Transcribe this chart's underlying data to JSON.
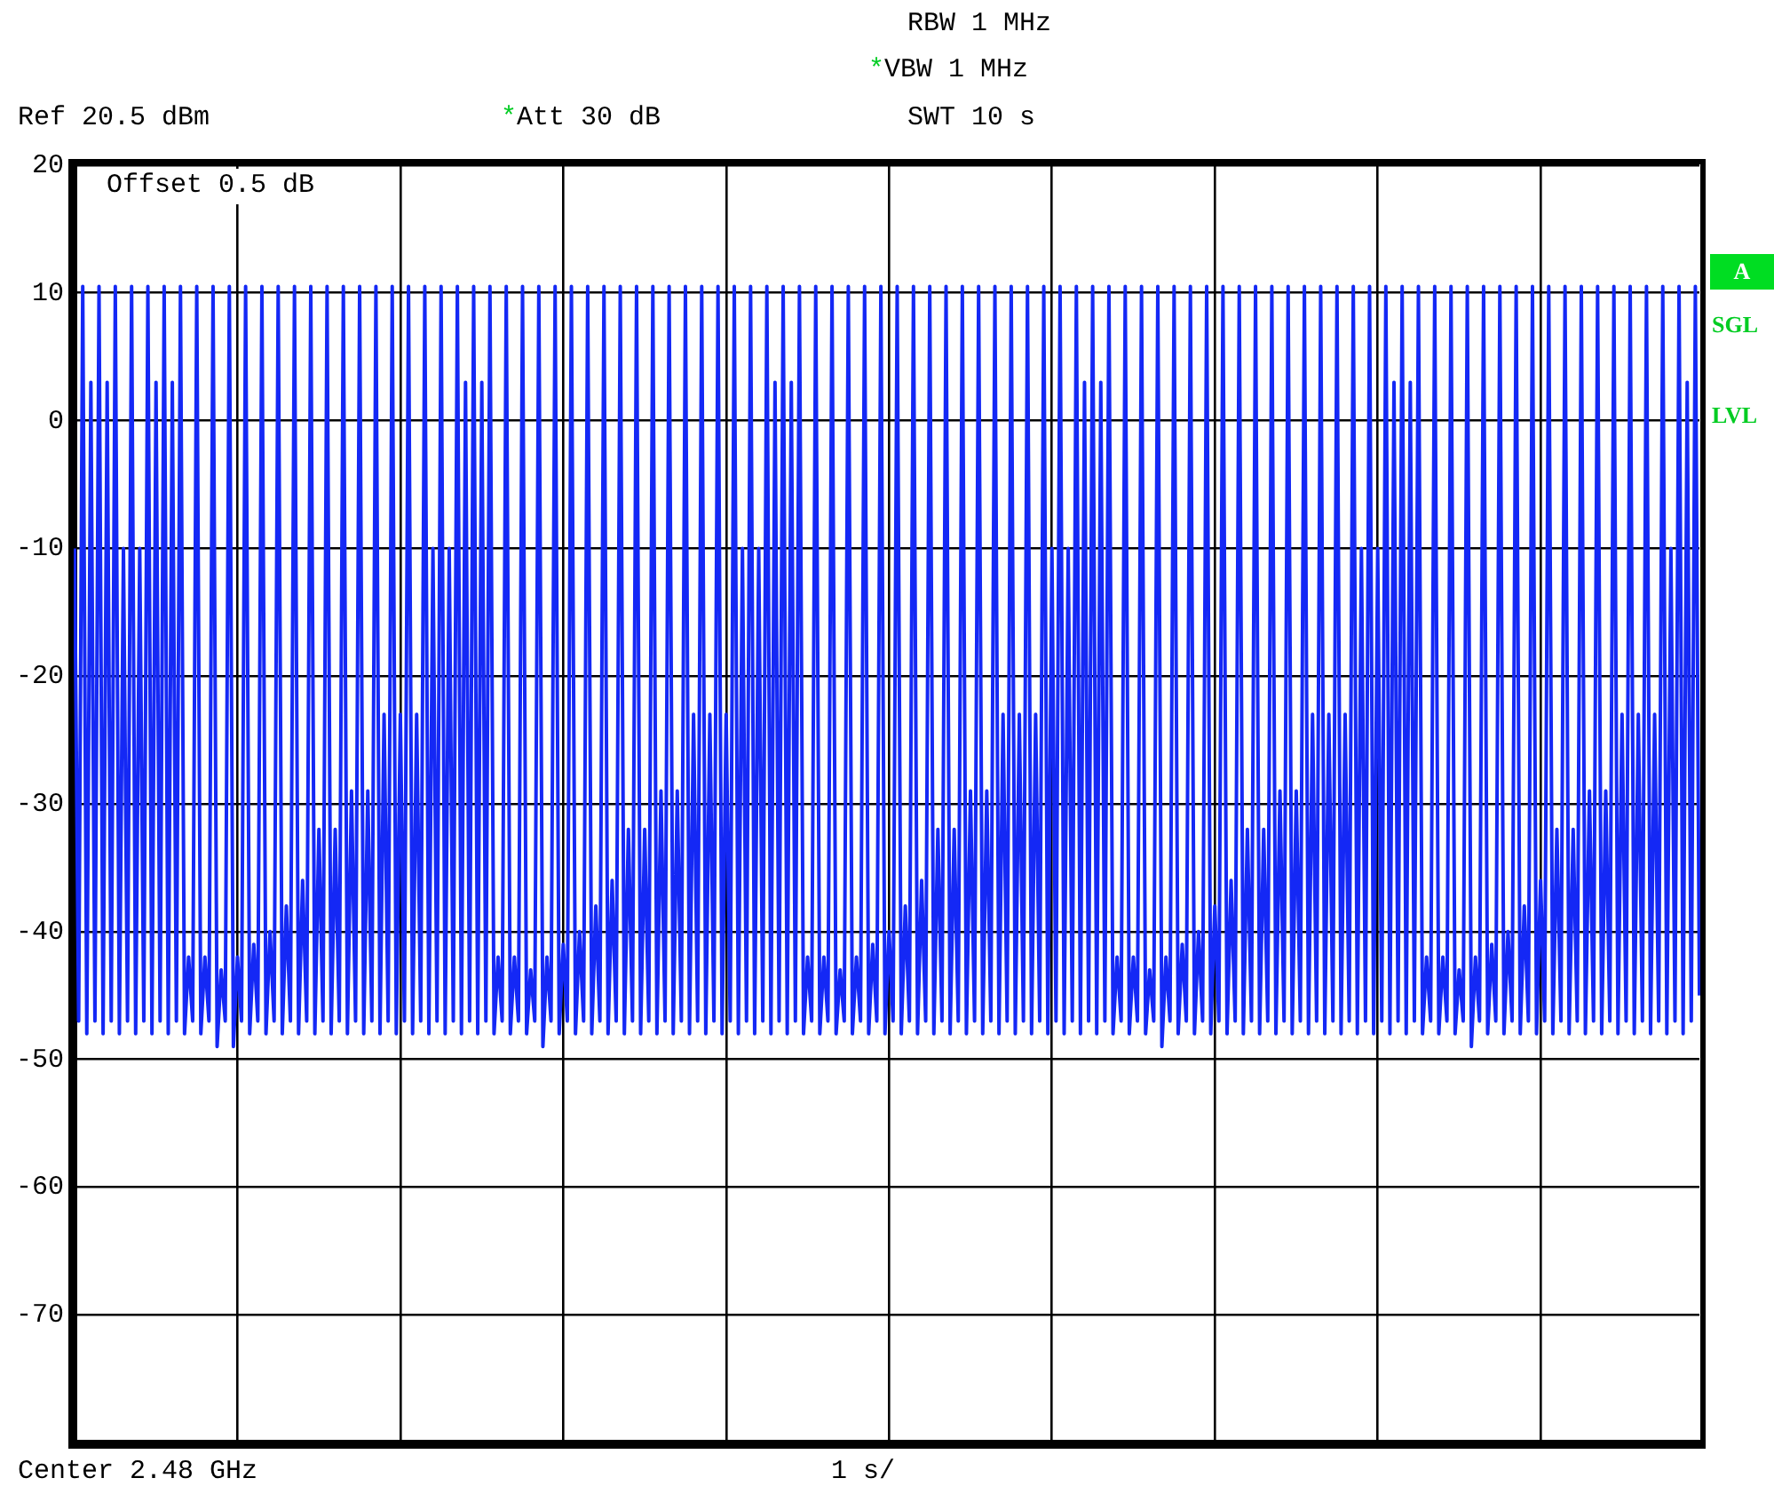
{
  "chart_data": {
    "type": "line",
    "color": "#1428f5",
    "annotations": [
      "RBW 1 MHz",
      "*VBW 1 MHz",
      "Ref 20.5 dBm",
      "*Att 30 dB",
      "SWT 10 s",
      "Offset 0.5 dB",
      "A",
      "SGL",
      "LVL",
      "Center 2.48 GHz",
      "1 s/"
    ],
    "categories": [
      null,
      null,
      null,
      null,
      null,
      null,
      null,
      null,
      null,
      null,
      null,
      null,
      null,
      null,
      null,
      null,
      null,
      null,
      null,
      null,
      null,
      null,
      null,
      null,
      null,
      null,
      null,
      null,
      null,
      null,
      null,
      null,
      null,
      null,
      null,
      null,
      null,
      null,
      null,
      null,
      null,
      null,
      null,
      null,
      null,
      null,
      null,
      null,
      null,
      null,
      null,
      null,
      null,
      null,
      null,
      null,
      null,
      null,
      null,
      null,
      null,
      null,
      null,
      null,
      null,
      null,
      null,
      null,
      null,
      null,
      null,
      null,
      null,
      null,
      null,
      null,
      null,
      null,
      null,
      null,
      null,
      null,
      null,
      null,
      null,
      null,
      null,
      null,
      null,
      null,
      null,
      null,
      null,
      null,
      null,
      null,
      null,
      null,
      null,
      null,
      null,
      null,
      null,
      null,
      null,
      null,
      null,
      null,
      null,
      null,
      null,
      null,
      null,
      null,
      null,
      null,
      null,
      null,
      null,
      null,
      null,
      null,
      null,
      null,
      null,
      null,
      null,
      null,
      null,
      null,
      null,
      null,
      null,
      null,
      null,
      null,
      null,
      null,
      null,
      null,
      null,
      null,
      null,
      null,
      null,
      null,
      null,
      null,
      null,
      null,
      null,
      null,
      null,
      null,
      null,
      null,
      null,
      null,
      null,
      null,
      null,
      null,
      null,
      null,
      null,
      null,
      null,
      null,
      null,
      null,
      null,
      null,
      null,
      null,
      null,
      null,
      null,
      null,
      null,
      null,
      null,
      null,
      null,
      null,
      null,
      null,
      null,
      null,
      null,
      null,
      null,
      null,
      null,
      null,
      null,
      null,
      null,
      null,
      null,
      null,
      null,
      null,
      null,
      null,
      null,
      null,
      null,
      null,
      null,
      null,
      null,
      null,
      null,
      null,
      null,
      null,
      null,
      null,
      null,
      null,
      null,
      null,
      null,
      null,
      null,
      null,
      null,
      null,
      null,
      null,
      null,
      null,
      null,
      null,
      null,
      null,
      null,
      null,
      null,
      null,
      null,
      null,
      null,
      null,
      null,
      null,
      null,
      null,
      null,
      null,
      null,
      null,
      null,
      null,
      null,
      null,
      null,
      null,
      null,
      null,
      null,
      null,
      null,
      null,
      null,
      null,
      null,
      null,
      null,
      null,
      null,
      null,
      null,
      null,
      null,
      null,
      null,
      null,
      null,
      null,
      null,
      null,
      null,
      null,
      null,
      null,
      null,
      null,
      null,
      null,
      null,
      null,
      null,
      null,
      null,
      null,
      null,
      null,
      null,
      null,
      null,
      null,
      null,
      null,
      null,
      null,
      null,
      null,
      null,
      null,
      null,
      null,
      null,
      null,
      null,
      null,
      null,
      null,
      null,
      null,
      null,
      null,
      null,
      null,
      null,
      null,
      null,
      null,
      null,
      null,
      null,
      null,
      null,
      null,
      null,
      null,
      null,
      null,
      null,
      null,
      null,
      null,
      null,
      null,
      null,
      null,
      null,
      null,
      null,
      null,
      null,
      null,
      null,
      null,
      null,
      null,
      null,
      null,
      null,
      null,
      null,
      null,
      null,
      null,
      null,
      null,
      null,
      null,
      null,
      null,
      null,
      null,
      null,
      null,
      null,
      null,
      null,
      null,
      null,
      null,
      null,
      null,
      null,
      null,
      null,
      null,
      null,
      null,
      null,
      null,
      null,
      null,
      null,
      null,
      null,
      null,
      null,
      null,
      null,
      null
    ],
    "ylim": [
      -80,
      20
    ],
    "yticks": [
      -70,
      -60,
      -50,
      -40,
      -30,
      -20,
      -10,
      0,
      10,
      20
    ],
    "grid": true,
    "tick_labels": "y",
    "values": [
      -10,
      -47,
      10.5,
      -48,
      3,
      -47,
      10.5,
      -48,
      3,
      -47,
      10.5,
      -48,
      -10,
      -47,
      10.5,
      -48,
      -10,
      -47,
      10.5,
      -48,
      3,
      -47,
      10.5,
      -48,
      3,
      -47,
      10.5,
      -48,
      -42,
      -47,
      10.5,
      -48,
      -42,
      -47,
      10.5,
      -49,
      -43,
      -47,
      10.5,
      -49,
      -42,
      -47,
      10.5,
      -48,
      -41,
      -47,
      10.5,
      -48,
      -40,
      -47,
      10.5,
      -48,
      -38,
      -47,
      10.5,
      -48,
      -36,
      -47,
      10.5,
      -48,
      -32,
      -47,
      10.5,
      -48,
      -32,
      -47,
      10.5,
      -48,
      -29,
      -47,
      10.5,
      -48,
      -29,
      -47,
      10.5,
      -48,
      -23,
      -47,
      10.5,
      -48,
      -23,
      -47,
      10.5,
      -48,
      -23,
      -47,
      10.5,
      -48,
      -10,
      -47,
      10.5,
      -48,
      -10,
      -47,
      10.5,
      -48,
      3,
      -47,
      10.5,
      -48,
      3,
      -47,
      10.5,
      -48,
      -42,
      -47,
      10.5,
      -48,
      -42,
      -47,
      10.5,
      -48,
      -43,
      -47,
      10.5,
      -49,
      -42,
      -47,
      10.5,
      -48,
      -41,
      -47,
      10.5,
      -48,
      -40,
      -47,
      10.5,
      -48,
      -38,
      -47,
      10.5,
      -48,
      -36,
      -47,
      10.5,
      -48,
      -32,
      -47,
      10.5,
      -48,
      -32,
      -47,
      10.5,
      -48,
      -29,
      -47,
      10.5,
      -48,
      -29,
      -47,
      10.5,
      -48,
      -23,
      -47,
      10.5,
      -48,
      -23,
      -47,
      10.5,
      -48,
      -23,
      -47,
      10.5,
      -48,
      -10,
      -47,
      10.5,
      -48,
      -10,
      -47,
      10.5,
      -48,
      3,
      -47,
      10.5,
      -48,
      3,
      -47,
      10.5,
      -48,
      -42,
      -47,
      10.5,
      -48,
      -42,
      -47,
      10.5,
      -48,
      -43,
      -47,
      10.5,
      -48,
      -42,
      -47,
      10.5,
      -48,
      -41,
      -47,
      10.5,
      -48,
      -40,
      -47,
      10.5,
      -48,
      -38,
      -47,
      10.5,
      -48,
      -36,
      -47,
      10.5,
      -48,
      -32,
      -47,
      10.5,
      -48,
      -32,
      -47,
      10.5,
      -48,
      -29,
      -47,
      10.5,
      -48,
      -29,
      -47,
      10.5,
      -48,
      -23,
      -47,
      10.5,
      -48,
      -23,
      -47,
      10.5,
      -48,
      -23,
      -47,
      10.5,
      -48,
      -10,
      -47,
      10.5,
      -48,
      -10,
      -47,
      10.5,
      -48,
      3,
      -47,
      10.5,
      -48,
      3,
      -47,
      10.5,
      -48,
      -42,
      -47,
      10.5,
      -48,
      -42,
      -47,
      10.5,
      -48,
      -43,
      -47,
      10.5,
      -49,
      -42,
      -47,
      10.5,
      -48,
      -41,
      -47,
      10.5,
      -48,
      -40,
      -47,
      10.5,
      -48,
      -38,
      -47,
      10.5,
      -48,
      -36,
      -47,
      10.5,
      -48,
      -32,
      -47,
      10.5,
      -48,
      -32,
      -47,
      10.5,
      -48,
      -29,
      -47,
      10.5,
      -48,
      -29,
      -47,
      10.5,
      -48,
      -23,
      -47,
      10.5,
      -48,
      -23,
      -47,
      10.5,
      -48,
      -23,
      -47,
      10.5,
      -48,
      -10,
      -47,
      10.5,
      -48,
      -10,
      -47,
      10.5,
      -48,
      3,
      -47,
      10.5,
      -48,
      3,
      -47,
      10.5,
      -48,
      -42,
      -47,
      10.5,
      -48,
      -42,
      -47,
      10.5,
      -48,
      -43,
      -47,
      10.5,
      -49,
      -42,
      -47,
      10.5,
      -48,
      -41,
      -47,
      10.5,
      -48,
      -40,
      -47,
      10.5,
      -48,
      -38,
      -47,
      10.5,
      -48,
      -36,
      -47,
      10.5,
      -48,
      -32,
      -47,
      10.5,
      -48,
      -32,
      -47,
      10.5,
      -48,
      -29,
      -47,
      10.5,
      -48,
      -29,
      -47,
      10.5,
      -48,
      -23,
      -47,
      10.5,
      -48,
      -23,
      -47,
      10.5,
      -48,
      -23,
      -47,
      10.5,
      -48,
      -10,
      -47,
      10.5,
      -48,
      3,
      -47,
      10.5,
      -45
    ]
  }
}
